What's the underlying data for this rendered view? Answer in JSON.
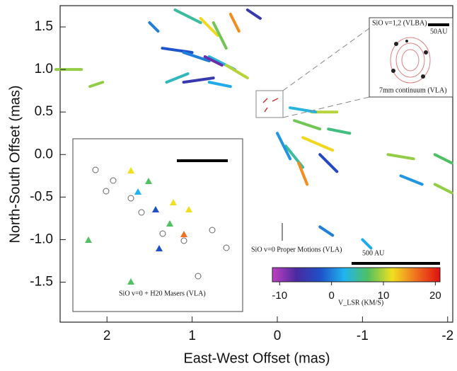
{
  "chart_data": {
    "type": "quiver",
    "xlabel": "East-West Offset (mas)",
    "ylabel": "North-South Offset (mas)",
    "xlim": [
      2.55,
      -2.06
    ],
    "ylim": [
      -1.97,
      1.75
    ],
    "xticks": [
      2,
      1,
      0,
      -1,
      -2
    ],
    "yticks": [
      1.5,
      {
        "value": 1.0,
        "label": "1.0"
      },
      0.5,
      {
        "value": 0.0,
        "label": "0.0"
      },
      -0.5,
      {
        "value": -1.0,
        "label": "-1.0"
      },
      -1.5
    ],
    "annotations": [
      "SiO v=0 Proper Motions (VLA)",
      "500 AU",
      "SiO v=1,2 (VLBA)",
      "50AU",
      "7mm continuum (VLA)",
      "SiO v=0 + H20 Masers (VLA)"
    ],
    "colorbar": {
      "label": "V_LSR (KM/S)",
      "lim": [
        -11.4,
        20.9
      ],
      "ticks": [
        -10,
        0,
        10,
        20
      ],
      "colormap": [
        "#c040c0",
        "#4a2aa0",
        "#1e50c8",
        "#20b4f0",
        "#50c060",
        "#f0e020",
        "#f07020",
        "#e01010"
      ]
    },
    "vectors": {
      "x": [
        0.9,
        0.7,
        1.0,
        0.8,
        0.6,
        0.5,
        0.75,
        0.55,
        0.45,
        1.05,
        0.65,
        0.35,
        -0.2,
        -0.3,
        -0.1,
        -0.4,
        0.0,
        -0.5,
        -0.25,
        -0.6,
        -0.15,
        2.2,
        2.3,
        -1.3,
        -1.85,
        -1.45,
        -1.85,
        -1.0,
        -0.5,
        1.5,
        0.2
      ],
      "y": [
        1.55,
        1.4,
        1.2,
        1.1,
        1.25,
        1.0,
        0.9,
        0.8,
        1.45,
        0.95,
        1.05,
        0.9,
        0.4,
        0.2,
        0.1,
        0.5,
        0.25,
        0.0,
        -0.1,
        0.3,
        0.55,
        0.8,
        1.0,
        0.0,
        0.0,
        -0.25,
        -0.35,
        -1.0,
        -0.85,
        1.55,
        1.6
      ],
      "u": [
        0.3,
        0.2,
        0.35,
        0.3,
        0.15,
        0.3,
        0.35,
        0.25,
        0.1,
        0.25,
        0.2,
        0.25,
        -0.3,
        -0.35,
        -0.2,
        -0.3,
        -0.15,
        -0.2,
        -0.1,
        -0.25,
        -0.3,
        -0.15,
        0.3,
        -0.3,
        -0.2,
        -0.25,
        -0.2,
        -0.1,
        -0.15,
        -0.1,
        0.15
      ],
      "v": [
        0.15,
        0.2,
        0.05,
        0.1,
        0.3,
        0.15,
        -0.05,
        0.05,
        0.2,
        -0.1,
        0.1,
        0.15,
        -0.1,
        -0.15,
        -0.25,
        0,
        -0.3,
        -0.2,
        -0.25,
        -0.05,
        -0.05,
        0.05,
        0,
        -0.05,
        -0.1,
        -0.1,
        -0.1,
        -0.1,
        -0.1,
        -0.1,
        0.1
      ],
      "c": [
        5,
        12,
        -2,
        0,
        8,
        3,
        -5,
        2,
        15,
        4,
        -8,
        10,
        8,
        12,
        5,
        10,
        1,
        -3,
        15,
        6,
        3,
        9,
        9,
        9,
        7,
        1,
        9,
        2,
        0,
        0,
        -5
      ]
    }
  }
}
